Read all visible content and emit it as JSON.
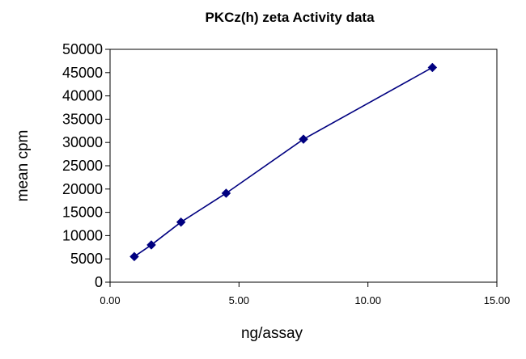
{
  "chart_data": {
    "type": "scatter",
    "title": "PKCz(h) zeta Activity data",
    "xlabel": "ng/assay",
    "ylabel": "mean cpm",
    "xlim": [
      0,
      15
    ],
    "ylim": [
      0,
      50000
    ],
    "x_ticks": [
      "0.00",
      "5.00",
      "10.00",
      "15.00"
    ],
    "y_ticks": [
      "0",
      "5000",
      "10000",
      "15000",
      "20000",
      "25000",
      "30000",
      "35000",
      "40000",
      "45000",
      "50000"
    ],
    "grid": false,
    "legend": false,
    "connected": true,
    "marker": "diamond",
    "series": [
      {
        "x": [
          0.94,
          1.6,
          2.75,
          4.5,
          7.5,
          12.5
        ],
        "y": [
          5500,
          8000,
          12900,
          19100,
          30700,
          46100
        ],
        "color": "#000080"
      }
    ]
  }
}
